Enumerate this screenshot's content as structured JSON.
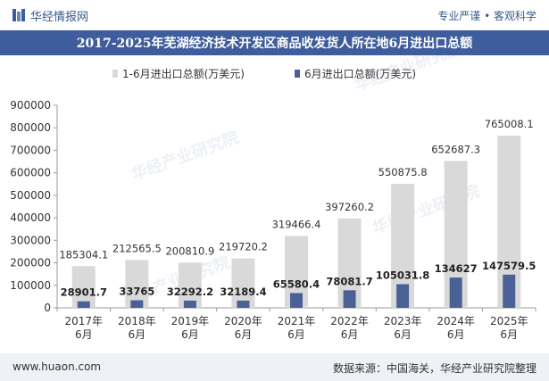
{
  "header": {
    "brand": "华经情报网",
    "tagline": "专业严谨 • 客观科学"
  },
  "title": "2017-2025年芜湖经济技术开发区商品收发货人所在地6月进出口总额",
  "footer": {
    "website": "www.huaon.com",
    "source": "数据来源：中国海关，华经产业研究院整理"
  },
  "colors": {
    "header_bar": "#3e5d9c",
    "series1": "#d9d9d9",
    "series2": "#4a6196",
    "brand_text": "#3a5a8c"
  },
  "chart_data": {
    "type": "bar",
    "categories": [
      "2017年\n6月",
      "2018年\n6月",
      "2019年\n6月",
      "2020年\n6月",
      "2021年\n6月",
      "2022年\n6月",
      "2023年\n6月",
      "2024年\n6月",
      "2025年\n6月"
    ],
    "series": [
      {
        "name": "1-6月进出口总额(万美元)",
        "values": [
          185304.1,
          212565.5,
          200810.9,
          219720.2,
          319466.4,
          397260.2,
          550875.8,
          652687.3,
          765008.1
        ],
        "labels": [
          "185304.1",
          "212565.5",
          "200810.9",
          "219720.2",
          "319466.4",
          "397260.2",
          "550875.8",
          "652687.3",
          "765008.1"
        ]
      },
      {
        "name": "6月进出口总额(万美元)",
        "values": [
          28901.7,
          33765,
          32292.2,
          32189.4,
          65580.4,
          78081.7,
          105031.8,
          134627,
          147579.5
        ],
        "labels": [
          "28901.7",
          "33765",
          "32292.2",
          "32189.4",
          "65580.4",
          "78081.7",
          "105031.8",
          "134627",
          "147579.5"
        ]
      }
    ],
    "ylim": [
      0,
      900000
    ],
    "yticks": [
      "0",
      "100000",
      "200000",
      "300000",
      "400000",
      "500000",
      "600000",
      "700000",
      "800000",
      "900000"
    ],
    "grid": false,
    "legend": "top-center",
    "watermark": "华经产业研究院"
  }
}
